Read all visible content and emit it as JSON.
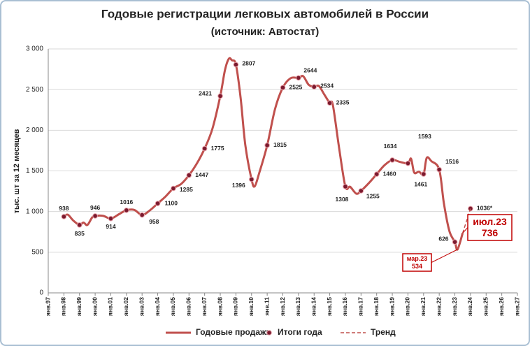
{
  "chart_data": {
    "type": "line",
    "title": "Годовые регистрации легковых автомобилей в России",
    "subtitle": "(источник: Автостат)",
    "y_label": "тыс. шт за 12 месяцев",
    "xlim": [
      1997,
      2027
    ],
    "xticks": [
      {
        "value": 1997,
        "label": "янв.97"
      },
      {
        "value": 1998,
        "label": "янв.98"
      },
      {
        "value": 1999,
        "label": "янв.99"
      },
      {
        "value": 2000,
        "label": "янв.00"
      },
      {
        "value": 2001,
        "label": "янв.01"
      },
      {
        "value": 2002,
        "label": "янв.02"
      },
      {
        "value": 2003,
        "label": "янв.03"
      },
      {
        "value": 2004,
        "label": "янв.04"
      },
      {
        "value": 2005,
        "label": "янв.05"
      },
      {
        "value": 2006,
        "label": "янв.06"
      },
      {
        "value": 2007,
        "label": "янв.07"
      },
      {
        "value": 2008,
        "label": "янв.08"
      },
      {
        "value": 2009,
        "label": "янв.09"
      },
      {
        "value": 2010,
        "label": "янв.10"
      },
      {
        "value": 2011,
        "label": "янв.11"
      },
      {
        "value": 2012,
        "label": "янв.12"
      },
      {
        "value": 2013,
        "label": "янв.13"
      },
      {
        "value": 2014,
        "label": "янв.14"
      },
      {
        "value": 2015,
        "label": "янв.15"
      },
      {
        "value": 2016,
        "label": "янв.16"
      },
      {
        "value": 2017,
        "label": "янв.17"
      },
      {
        "value": 2018,
        "label": "янв.18"
      },
      {
        "value": 2019,
        "label": "янв.19"
      },
      {
        "value": 2020,
        "label": "янв.20"
      },
      {
        "value": 2021,
        "label": "янв.21"
      },
      {
        "value": 2022,
        "label": "янв.22"
      },
      {
        "value": 2023,
        "label": "янв.23"
      },
      {
        "value": 2024,
        "label": "янв.24"
      },
      {
        "value": 2025,
        "label": "янв.25"
      },
      {
        "value": 2026,
        "label": "янв.26"
      },
      {
        "value": 2027,
        "label": "янв.27"
      }
    ],
    "ylim": [
      0,
      3000
    ],
    "yticks": [
      0,
      500,
      {
        "value": 1000,
        "label": "1 000"
      },
      {
        "value": 1500,
        "label": "1 500"
      },
      {
        "value": 2000,
        "label": "2 000"
      },
      {
        "value": 2500,
        "label": "2 500"
      },
      {
        "value": 3000,
        "label": "3 000"
      }
    ],
    "grid": true,
    "series": [
      {
        "name": "Годовые продажи",
        "type": "line",
        "color": "#c0504d",
        "x": [
          1998.0,
          1998.25,
          1998.6,
          1999.0,
          1999.25,
          1999.5,
          1999.8,
          2000.0,
          2000.5,
          2001.0,
          2001.5,
          2002.0,
          2002.5,
          2003.0,
          2003.5,
          2004.0,
          2004.5,
          2005.0,
          2005.5,
          2006.0,
          2006.5,
          2007.0,
          2007.5,
          2008.0,
          2008.3,
          2008.55,
          2008.75,
          2009.0,
          2009.3,
          2009.6,
          2010.0,
          2010.2,
          2010.5,
          2011.0,
          2011.5,
          2012.0,
          2012.5,
          2013.0,
          2013.3,
          2013.65,
          2014.0,
          2014.3,
          2014.65,
          2015.0,
          2015.2,
          2015.6,
          2016.0,
          2016.3,
          2016.7,
          2017.0,
          2017.5,
          2018.0,
          2018.5,
          2019.0,
          2019.5,
          2020.0,
          2020.2,
          2020.4,
          2020.7,
          2021.0,
          2021.2,
          2021.5,
          2022.0,
          2022.3,
          2022.65,
          2023.0,
          2023.17,
          2023.5
        ],
        "values": [
          938,
          962,
          890,
          835,
          865,
          835,
          925,
          946,
          948,
          914,
          965,
          1016,
          1020,
          958,
          1015,
          1100,
          1185,
          1285,
          1340,
          1447,
          1590,
          1775,
          2020,
          2421,
          2740,
          2880,
          2860,
          2807,
          2400,
          1820,
          1396,
          1310,
          1480,
          1815,
          2260,
          2525,
          2640,
          2644,
          2665,
          2560,
          2534,
          2545,
          2440,
          2335,
          2310,
          1780,
          1308,
          1305,
          1220,
          1255,
          1350,
          1460,
          1570,
          1634,
          1610,
          1593,
          1650,
          1480,
          1490,
          1461,
          1660,
          1620,
          1516,
          1100,
          760,
          626,
          534,
          736
        ]
      },
      {
        "name": "Итоги года",
        "type": "scatter",
        "color": "#7b1a2e",
        "x": [
          1998,
          1999,
          2000,
          2001,
          2002,
          2003,
          2004,
          2005,
          2006,
          2007,
          2008,
          2009,
          2010,
          2011,
          2012,
          2013,
          2014,
          2015,
          2016,
          2017,
          2018,
          2019,
          2020,
          2021,
          2022,
          2023,
          2024
        ],
        "values": [
          938,
          835,
          946,
          914,
          1016,
          958,
          1100,
          1285,
          1447,
          1775,
          2421,
          2807,
          1396,
          1815,
          2525,
          2644,
          2534,
          2335,
          1308,
          1255,
          1460,
          1634,
          1593,
          1461,
          1516,
          626,
          1036
        ],
        "value_labels": [
          "938",
          "835",
          "946",
          "914",
          "1016",
          "958",
          "1100",
          "1285",
          "1447",
          "1775",
          "2421",
          "2807",
          "1396",
          "1815",
          "2525",
          "2644",
          "2534",
          "2335",
          "1308",
          "1255",
          "1460",
          "1634",
          "1593",
          "1461",
          "1516",
          "626",
          "1036*"
        ]
      },
      {
        "name": "Тренд",
        "type": "line",
        "dashed": true,
        "color": "#c0504d",
        "x": [
          2023.5,
          2024
        ],
        "values": [
          736,
          1036
        ]
      }
    ],
    "annotations": [
      {
        "label": "мар.23",
        "x": 2023.17,
        "value": 534
      },
      {
        "label": "июл.23",
        "x": 2023.5,
        "value": 736
      }
    ]
  }
}
